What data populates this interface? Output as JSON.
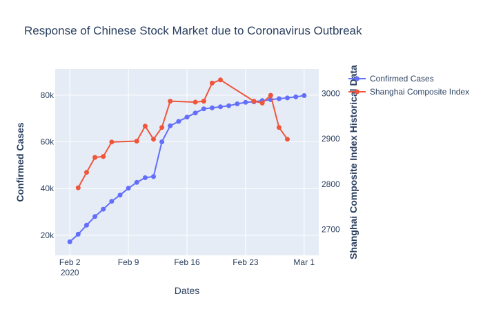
{
  "chart_data": {
    "type": "line",
    "title": "Response of Chinese Stock Market due to Coronavirus Outbreak",
    "xlabel": "Dates",
    "ylabel_left": "Confirmed Cases",
    "ylabel_right": "Shanghai Composite Index Historical Data",
    "x_ticks": [
      "Feb 2",
      "Feb 9",
      "Feb 16",
      "Feb 23",
      "Mar 1"
    ],
    "x_tick_sub": "2020",
    "y_left_ticks": [
      "20k",
      "40k",
      "60k",
      "80k"
    ],
    "y_right_ticks": [
      "2700",
      "2800",
      "2900",
      "3000"
    ],
    "y_left_range": [
      11400,
      91200
    ],
    "y_right_range": [
      2643,
      3054
    ],
    "x_range": [
      "2020-01-31 06:00",
      "2020-03-02 18:00"
    ],
    "grid": true,
    "legend_position": "top-right",
    "series": [
      {
        "name": "Confirmed Cases",
        "axis": "left",
        "color": "#636efa",
        "points": [
          [
            "2020-02-02",
            17205
          ],
          [
            "2020-02-03",
            20438
          ],
          [
            "2020-02-04",
            24324
          ],
          [
            "2020-02-05",
            28018
          ],
          [
            "2020-02-06",
            31161
          ],
          [
            "2020-02-07",
            34546
          ],
          [
            "2020-02-08",
            37198
          ],
          [
            "2020-02-09",
            40171
          ],
          [
            "2020-02-10",
            42638
          ],
          [
            "2020-02-11",
            44653
          ],
          [
            "2020-02-12",
            45117
          ],
          [
            "2020-02-13",
            60010
          ],
          [
            "2020-02-14",
            66885
          ],
          [
            "2020-02-15",
            68763
          ],
          [
            "2020-02-16",
            70587
          ],
          [
            "2020-02-17",
            72364
          ],
          [
            "2020-02-18",
            74139
          ],
          [
            "2020-02-19",
            74546
          ],
          [
            "2020-02-20",
            75003
          ],
          [
            "2020-02-21",
            75465
          ],
          [
            "2020-02-22",
            76288
          ],
          [
            "2020-02-23",
            76936
          ],
          [
            "2020-02-24",
            77150
          ],
          [
            "2020-02-25",
            77658
          ],
          [
            "2020-02-26",
            78064
          ],
          [
            "2020-02-27",
            78497
          ],
          [
            "2020-02-28",
            78824
          ],
          [
            "2020-02-29",
            79251
          ],
          [
            "2020-03-01",
            79824
          ]
        ]
      },
      {
        "name": "Shanghai Composite Index",
        "axis": "right",
        "color": "#ef553b",
        "points": [
          [
            "2020-02-03",
            2792
          ],
          [
            "2020-02-04",
            2826
          ],
          [
            "2020-02-05",
            2859
          ],
          [
            "2020-02-06",
            2861
          ],
          [
            "2020-02-07",
            2893
          ],
          [
            "2020-02-10",
            2895
          ],
          [
            "2020-02-11",
            2928
          ],
          [
            "2020-02-12",
            2899
          ],
          [
            "2020-02-13",
            2925
          ],
          [
            "2020-02-14",
            2983
          ],
          [
            "2020-02-17",
            2981
          ],
          [
            "2020-02-18",
            2983
          ],
          [
            "2020-02-19",
            3023
          ],
          [
            "2020-02-20",
            3030
          ],
          [
            "2020-02-24",
            2983
          ],
          [
            "2020-02-25",
            2979
          ],
          [
            "2020-02-26",
            2996
          ],
          [
            "2020-02-27",
            2925
          ],
          [
            "2020-02-28",
            2899
          ]
        ]
      }
    ]
  }
}
